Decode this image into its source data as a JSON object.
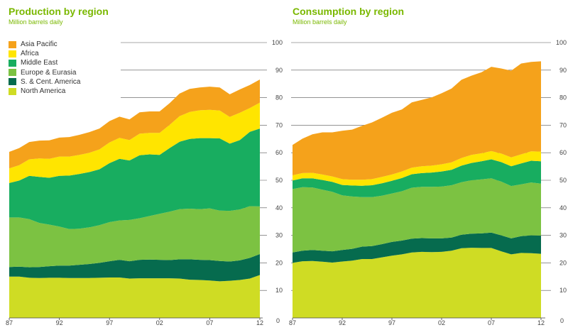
{
  "legend": [
    {
      "name": "Asia Pacific",
      "color": "#f5a21b"
    },
    {
      "name": "Africa",
      "color": "#ffe500"
    },
    {
      "name": "Middle East",
      "color": "#18ad60"
    },
    {
      "name": "Europe & Eurasia",
      "color": "#7cc242"
    },
    {
      "name": "S. & Cent. America",
      "color": "#066b4e"
    },
    {
      "name": "North America",
      "color": "#cfdc24"
    }
  ],
  "chart_data": [
    {
      "type": "area",
      "stacked": true,
      "title": "Production by region",
      "subtitle": "Million barrels daily",
      "x": [
        1987,
        1988,
        1989,
        1990,
        1991,
        1992,
        1993,
        1994,
        1995,
        1996,
        1997,
        1998,
        1999,
        2000,
        2001,
        2002,
        2003,
        2004,
        2005,
        2006,
        2007,
        2008,
        2009,
        2010,
        2011,
        2012
      ],
      "x_tick_values": [
        1987,
        1992,
        1997,
        2002,
        2007,
        2012
      ],
      "x_tick_labels": [
        "87",
        "92",
        "97",
        "02",
        "07",
        "12"
      ],
      "ylim": [
        0,
        100
      ],
      "y_ticks": [
        0,
        10,
        20,
        30,
        40,
        50,
        60,
        70,
        80,
        90,
        100
      ],
      "series": [
        {
          "name": "North America",
          "values": [
            15.0,
            15.0,
            14.6,
            14.5,
            14.6,
            14.6,
            14.5,
            14.5,
            14.5,
            14.6,
            14.7,
            14.7,
            14.3,
            14.4,
            14.4,
            14.4,
            14.4,
            14.3,
            13.9,
            13.8,
            13.6,
            13.3,
            13.5,
            13.8,
            14.3,
            15.6
          ]
        },
        {
          "name": "S. & Cent. America",
          "values": [
            3.5,
            3.6,
            3.8,
            4.0,
            4.2,
            4.4,
            4.5,
            4.8,
            5.1,
            5.4,
            5.9,
            6.4,
            6.3,
            6.7,
            6.8,
            6.7,
            6.6,
            7.0,
            7.4,
            7.3,
            7.4,
            7.4,
            7.0,
            7.1,
            7.5,
            7.6
          ]
        },
        {
          "name": "Europe & Eurasia",
          "values": [
            18.0,
            17.9,
            17.5,
            16.0,
            15.1,
            14.2,
            13.3,
            13.1,
            13.3,
            13.7,
            14.2,
            14.3,
            15.0,
            15.1,
            15.8,
            16.7,
            17.6,
            18.2,
            18.4,
            18.4,
            18.8,
            18.3,
            18.4,
            18.5,
            18.8,
            17.3
          ]
        },
        {
          "name": "Middle East",
          "values": [
            12.5,
            13.4,
            15.7,
            16.7,
            17.0,
            18.4,
            19.4,
            19.9,
            20.1,
            20.3,
            21.4,
            22.4,
            21.6,
            22.9,
            22.4,
            21.4,
            23.1,
            24.5,
            25.3,
            25.8,
            25.5,
            26.2,
            24.4,
            25.2,
            27.0,
            28.3
          ]
        },
        {
          "name": "Africa",
          "values": [
            5.3,
            5.6,
            6.0,
            6.7,
            6.9,
            7.0,
            6.9,
            6.9,
            7.0,
            7.2,
            7.5,
            7.6,
            7.4,
            7.8,
            7.8,
            8.0,
            8.4,
            9.3,
            9.8,
            10.1,
            10.3,
            10.1,
            9.7,
            9.9,
            8.6,
            9.4
          ]
        },
        {
          "name": "Asia Pacific",
          "values": [
            6.0,
            6.2,
            6.3,
            6.5,
            6.7,
            6.9,
            7.1,
            7.3,
            7.5,
            7.6,
            7.8,
            7.7,
            7.5,
            7.8,
            7.8,
            7.8,
            7.9,
            8.2,
            8.4,
            8.3,
            8.4,
            8.4,
            8.2,
            8.5,
            8.4,
            8.4
          ]
        }
      ]
    },
    {
      "type": "area",
      "stacked": true,
      "title": "Consumption by region",
      "subtitle": "Million barrels daily",
      "x": [
        1987,
        1988,
        1989,
        1990,
        1991,
        1992,
        1993,
        1994,
        1995,
        1996,
        1997,
        1998,
        1999,
        2000,
        2001,
        2002,
        2003,
        2004,
        2005,
        2006,
        2007,
        2008,
        2009,
        2010,
        2011,
        2012
      ],
      "x_tick_values": [
        1987,
        1992,
        1997,
        2002,
        2007,
        2012
      ],
      "x_tick_labels": [
        "87",
        "92",
        "97",
        "02",
        "07",
        "12"
      ],
      "ylim": [
        0,
        100
      ],
      "y_ticks": [
        0,
        10,
        20,
        30,
        40,
        50,
        60,
        70,
        80,
        90,
        100
      ],
      "series": [
        {
          "name": "North America",
          "values": [
            20.0,
            20.6,
            20.7,
            20.4,
            20.1,
            20.5,
            20.8,
            21.4,
            21.4,
            22.0,
            22.6,
            23.1,
            23.8,
            24.0,
            23.9,
            24.0,
            24.4,
            25.3,
            25.5,
            25.4,
            25.4,
            24.2,
            23.1,
            23.6,
            23.5,
            23.3
          ]
        },
        {
          "name": "S. & Cent. America",
          "values": [
            3.8,
            3.8,
            4.0,
            4.0,
            4.1,
            4.2,
            4.3,
            4.5,
            4.7,
            4.8,
            5.0,
            5.0,
            5.0,
            5.0,
            5.0,
            4.9,
            4.8,
            4.9,
            5.1,
            5.3,
            5.6,
            5.8,
            5.8,
            6.1,
            6.5,
            6.6
          ]
        },
        {
          "name": "Europe & Eurasia",
          "values": [
            23.0,
            23.1,
            22.7,
            22.2,
            21.6,
            19.8,
            19.0,
            18.0,
            17.8,
            17.6,
            17.6,
            17.9,
            18.5,
            18.6,
            18.7,
            18.8,
            19.0,
            19.1,
            19.4,
            19.6,
            19.7,
            19.5,
            19.0,
            18.8,
            19.2,
            18.9
          ]
        },
        {
          "name": "Middle East",
          "values": [
            3.1,
            3.2,
            3.3,
            3.5,
            3.6,
            3.8,
            4.0,
            4.1,
            4.3,
            4.5,
            4.6,
            4.8,
            4.9,
            5.0,
            5.2,
            5.5,
            5.6,
            6.0,
            6.3,
            6.6,
            6.9,
            7.1,
            7.2,
            7.6,
            7.9,
            8.1
          ]
        },
        {
          "name": "Africa",
          "values": [
            1.9,
            1.9,
            2.0,
            2.0,
            2.0,
            2.1,
            2.1,
            2.2,
            2.2,
            2.3,
            2.3,
            2.4,
            2.4,
            2.5,
            2.5,
            2.6,
            2.7,
            2.8,
            2.9,
            2.9,
            3.0,
            3.1,
            3.2,
            3.3,
            3.4,
            3.5
          ]
        },
        {
          "name": "Asia Pacific",
          "values": [
            11.0,
            12.5,
            14.0,
            15.3,
            16.0,
            17.6,
            18.2,
            19.6,
            20.6,
            21.5,
            22.4,
            22.5,
            23.7,
            24.1,
            24.8,
            25.8,
            26.8,
            28.4,
            28.8,
            29.4,
            30.6,
            30.9,
            31.5,
            33.0,
            32.5,
            32.8
          ]
        }
      ]
    }
  ]
}
